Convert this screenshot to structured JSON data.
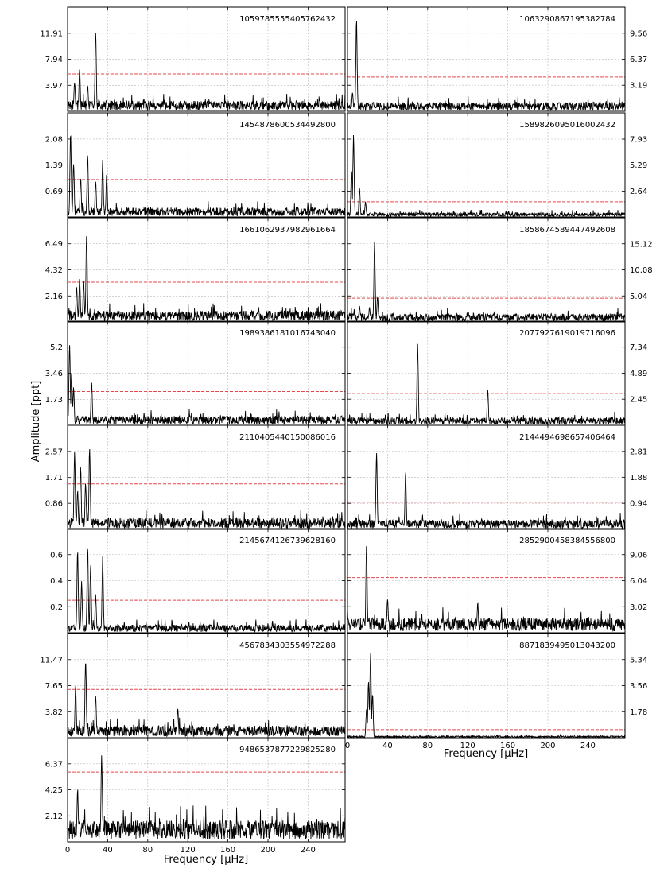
{
  "figure": {
    "ylabel": "Amplitude [ppt]",
    "xlabel": "Frequency [$\\mu$Hz]",
    "xlabel_display": "Frequency [µHz]"
  },
  "chart_data": {
    "type": "line",
    "xlim": [
      0,
      277
    ],
    "xticks": [
      0,
      40,
      80,
      120,
      160,
      200,
      240
    ],
    "grid": true,
    "threshold_line": {
      "style": "dashed",
      "color": "#e8474c"
    },
    "line_color": "#000000",
    "panels": [
      {
        "id": "1059785555405762432",
        "column": "left",
        "row": 0,
        "ylim": [
          0,
          15.9
        ],
        "yticks": [
          3.97,
          7.94,
          11.91
        ],
        "threshold": 5.7,
        "noise": 1.3,
        "peaks": [
          {
            "x": 28,
            "y": 12.9
          },
          {
            "x": 12,
            "y": 6.8
          },
          {
            "x": 7,
            "y": 4.6
          },
          {
            "x": 20,
            "y": 4.0
          }
        ]
      },
      {
        "id": "1063290867195382784",
        "column": "right",
        "row": 0,
        "ylim": [
          0,
          12.75
        ],
        "yticks": [
          3.19,
          6.37,
          9.56
        ],
        "threshold": 4.2,
        "noise": 0.9,
        "peaks": [
          {
            "x": 9,
            "y": 11.5
          },
          {
            "x": 5,
            "y": 2.3
          }
        ]
      },
      {
        "id": "1454878600534492800",
        "column": "left",
        "row": 1,
        "ylim": [
          0,
          2.78
        ],
        "yticks": [
          0.69,
          1.39,
          2.08
        ],
        "threshold": 1.0,
        "noise": 0.2,
        "peaks": [
          {
            "x": 3,
            "y": 2.3
          },
          {
            "x": 6,
            "y": 1.5
          },
          {
            "x": 20,
            "y": 1.7
          },
          {
            "x": 35,
            "y": 1.55
          },
          {
            "x": 39,
            "y": 1.2
          },
          {
            "x": 28,
            "y": 1.0
          },
          {
            "x": 13,
            "y": 1.1
          }
        ]
      },
      {
        "id": "1589826095016002432",
        "column": "right",
        "row": 1,
        "ylim": [
          0,
          10.6
        ],
        "yticks": [
          2.64,
          5.29,
          7.93
        ],
        "threshold": 1.55,
        "noise": 0.35,
        "peaks": [
          {
            "x": 6,
            "y": 8.5
          },
          {
            "x": 4,
            "y": 5.0
          },
          {
            "x": 12,
            "y": 3.0
          },
          {
            "x": 18,
            "y": 1.6
          }
        ]
      },
      {
        "id": "1661062937982961664",
        "column": "left",
        "row": 2,
        "ylim": [
          0,
          8.65
        ],
        "yticks": [
          2.16,
          4.32,
          6.49
        ],
        "threshold": 3.3,
        "noise": 0.75,
        "peaks": [
          {
            "x": 19,
            "y": 7.7
          },
          {
            "x": 12,
            "y": 3.9
          },
          {
            "x": 16,
            "y": 3.5
          },
          {
            "x": 9,
            "y": 3.0
          }
        ]
      },
      {
        "id": "1858674589447492608",
        "column": "right",
        "row": 2,
        "ylim": [
          0,
          20.16
        ],
        "yticks": [
          5.04,
          10.08,
          15.12
        ],
        "threshold": 4.6,
        "noise": 1.3,
        "peaks": [
          {
            "x": 27,
            "y": 16.3
          },
          {
            "x": 30,
            "y": 5.0
          },
          {
            "x": 12,
            "y": 3.2
          },
          {
            "x": 22,
            "y": 2.9
          }
        ]
      },
      {
        "id": "1989386181016743040",
        "column": "left",
        "row": 3,
        "ylim": [
          0,
          6.93
        ],
        "yticks": [
          1.73,
          3.46,
          5.2
        ],
        "threshold": 2.25,
        "noise": 0.5,
        "peaks": [
          {
            "x": 2,
            "y": 5.7
          },
          {
            "x": 4,
            "y": 3.7
          },
          {
            "x": 6,
            "y": 2.6
          },
          {
            "x": 24,
            "y": 3.0
          }
        ]
      },
      {
        "id": "2077927619019716096",
        "column": "right",
        "row": 3,
        "ylim": [
          0,
          9.78
        ],
        "yticks": [
          2.45,
          4.89,
          7.34
        ],
        "threshold": 3.0,
        "noise": 0.6,
        "peaks": [
          {
            "x": 70,
            "y": 8.1
          },
          {
            "x": 140,
            "y": 3.4
          }
        ]
      },
      {
        "id": "2110405440150086016",
        "column": "left",
        "row": 4,
        "ylim": [
          0,
          3.43
        ],
        "yticks": [
          0.86,
          1.71,
          2.57
        ],
        "threshold": 1.5,
        "noise": 0.3,
        "peaks": [
          {
            "x": 7,
            "y": 2.6
          },
          {
            "x": 13,
            "y": 2.1
          },
          {
            "x": 22,
            "y": 2.7
          },
          {
            "x": 18,
            "y": 1.6
          },
          {
            "x": 10,
            "y": 1.3
          }
        ]
      },
      {
        "id": "2144494698657406464",
        "column": "right",
        "row": 4,
        "ylim": [
          0,
          3.75
        ],
        "yticks": [
          0.94,
          1.88,
          2.81
        ],
        "threshold": 0.98,
        "noise": 0.28,
        "peaks": [
          {
            "x": 29,
            "y": 2.9
          },
          {
            "x": 58,
            "y": 2.1
          }
        ]
      },
      {
        "id": "2145674126739628160",
        "column": "left",
        "row": 5,
        "ylim": [
          0,
          0.8
        ],
        "yticks": [
          0.2,
          0.4,
          0.6
        ],
        "threshold": 0.25,
        "noise": 0.05,
        "peaks": [
          {
            "x": 10,
            "y": 0.65
          },
          {
            "x": 20,
            "y": 0.68
          },
          {
            "x": 23,
            "y": 0.55
          },
          {
            "x": 35,
            "y": 0.6
          },
          {
            "x": 14,
            "y": 0.4
          },
          {
            "x": 28,
            "y": 0.3
          }
        ]
      },
      {
        "id": "2852900458384556800",
        "column": "right",
        "row": 5,
        "ylim": [
          0,
          12.08
        ],
        "yticks": [
          3.02,
          6.04,
          9.06
        ],
        "threshold": 6.4,
        "noise": 1.4,
        "peaks": [
          {
            "x": 19,
            "y": 10.5
          },
          {
            "x": 40,
            "y": 4.2
          },
          {
            "x": 130,
            "y": 3.6
          }
        ]
      },
      {
        "id": "4567834303554972288",
        "column": "left",
        "row": 6,
        "ylim": [
          0,
          15.3
        ],
        "yticks": [
          3.82,
          7.65,
          11.47
        ],
        "threshold": 7.1,
        "noise": 1.4,
        "peaks": [
          {
            "x": 18,
            "y": 12.1
          },
          {
            "x": 8,
            "y": 8.0
          },
          {
            "x": 28,
            "y": 6.5
          },
          {
            "x": 110,
            "y": 4.4
          }
        ]
      },
      {
        "id": "8871839495013043200",
        "column": "right",
        "row": 6,
        "ylim": [
          0,
          7.12
        ],
        "yticks": [
          1.78,
          3.56,
          5.34
        ],
        "threshold": 0.55,
        "noise": 0.1,
        "peaks": [
          {
            "x": 23,
            "y": 6.1
          },
          {
            "x": 21,
            "y": 4.0
          },
          {
            "x": 25,
            "y": 3.2
          },
          {
            "x": 19,
            "y": 2.0
          }
        ]
      },
      {
        "id": "9486537877229825280",
        "column": "left",
        "row": 7,
        "ylim": [
          0,
          8.5
        ],
        "yticks": [
          2.12,
          4.25,
          6.37
        ],
        "threshold": 5.7,
        "noise": 1.4,
        "peaks": [
          {
            "x": 34,
            "y": 7.2
          },
          {
            "x": 10,
            "y": 4.4
          }
        ]
      }
    ]
  }
}
